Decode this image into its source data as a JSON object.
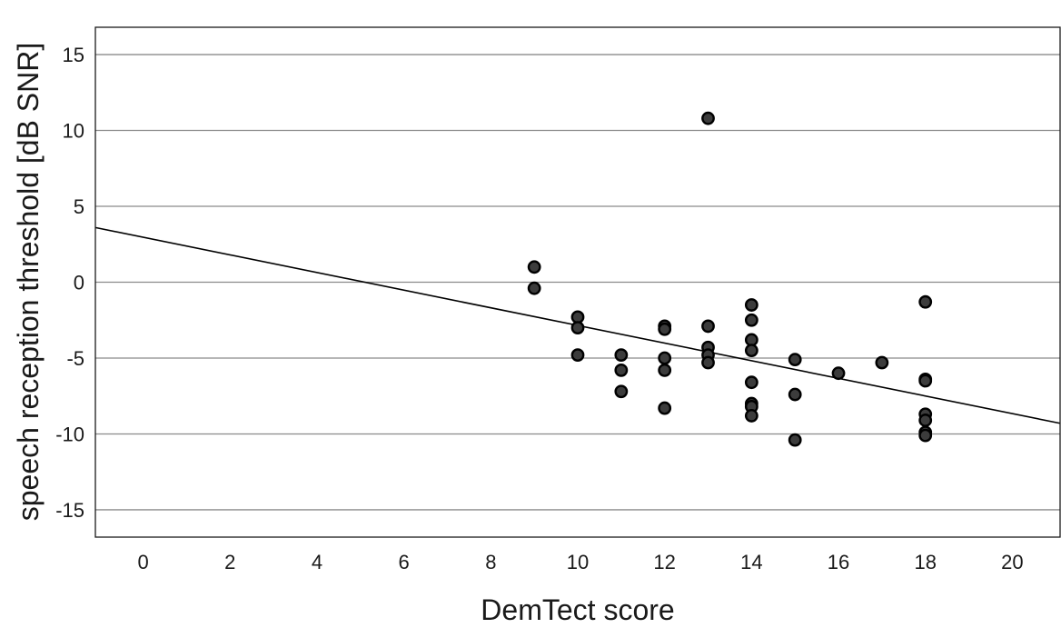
{
  "chart_data": {
    "type": "scatter",
    "title": "",
    "xlabel": "DemTect score",
    "ylabel": "speech reception threshold [dB SNR]",
    "xlim": [
      -1.1,
      21.1
    ],
    "ylim": [
      -16.8,
      16.8
    ],
    "xticks": [
      0,
      2,
      4,
      6,
      8,
      10,
      12,
      14,
      16,
      18,
      20
    ],
    "yticks": [
      15,
      10,
      5,
      0,
      -5,
      -10,
      -15
    ],
    "grid": {
      "horizontal": true,
      "vertical": false
    },
    "legend": "none",
    "colors": {
      "marker_fill": "#3c3c3c",
      "marker_edge": "#000000",
      "gridline": "#8a8a8a",
      "fit_line": "#000000"
    },
    "points": [
      {
        "x": 9,
        "y": 1.0
      },
      {
        "x": 9,
        "y": -0.4
      },
      {
        "x": 10,
        "y": -2.3
      },
      {
        "x": 10,
        "y": -3.0
      },
      {
        "x": 10,
        "y": -4.8
      },
      {
        "x": 11,
        "y": -4.8
      },
      {
        "x": 11,
        "y": -5.8
      },
      {
        "x": 11,
        "y": -7.2
      },
      {
        "x": 12,
        "y": -2.9
      },
      {
        "x": 12,
        "y": -3.1
      },
      {
        "x": 12,
        "y": -5.0
      },
      {
        "x": 12,
        "y": -5.8
      },
      {
        "x": 12,
        "y": -8.3
      },
      {
        "x": 13,
        "y": 10.8
      },
      {
        "x": 13,
        "y": -2.9
      },
      {
        "x": 13,
        "y": -4.3
      },
      {
        "x": 13,
        "y": -4.8
      },
      {
        "x": 13,
        "y": -5.3
      },
      {
        "x": 14,
        "y": -1.5
      },
      {
        "x": 14,
        "y": -2.5
      },
      {
        "x": 14,
        "y": -3.8
      },
      {
        "x": 14,
        "y": -4.5
      },
      {
        "x": 14,
        "y": -6.6
      },
      {
        "x": 14,
        "y": -8.0
      },
      {
        "x": 14,
        "y": -8.2
      },
      {
        "x": 14,
        "y": -8.8
      },
      {
        "x": 15,
        "y": -5.1
      },
      {
        "x": 15,
        "y": -7.4
      },
      {
        "x": 15,
        "y": -10.4
      },
      {
        "x": 16,
        "y": -6.0
      },
      {
        "x": 17,
        "y": -5.3
      },
      {
        "x": 18,
        "y": -1.3
      },
      {
        "x": 18,
        "y": -6.4
      },
      {
        "x": 18,
        "y": -6.5
      },
      {
        "x": 18,
        "y": -8.7
      },
      {
        "x": 18,
        "y": -9.1
      },
      {
        "x": 18,
        "y": -9.9
      },
      {
        "x": 18,
        "y": -10.1
      }
    ],
    "fit_line": {
      "x": [
        -1.1,
        21.1
      ],
      "y": [
        3.6,
        -9.3
      ]
    }
  }
}
